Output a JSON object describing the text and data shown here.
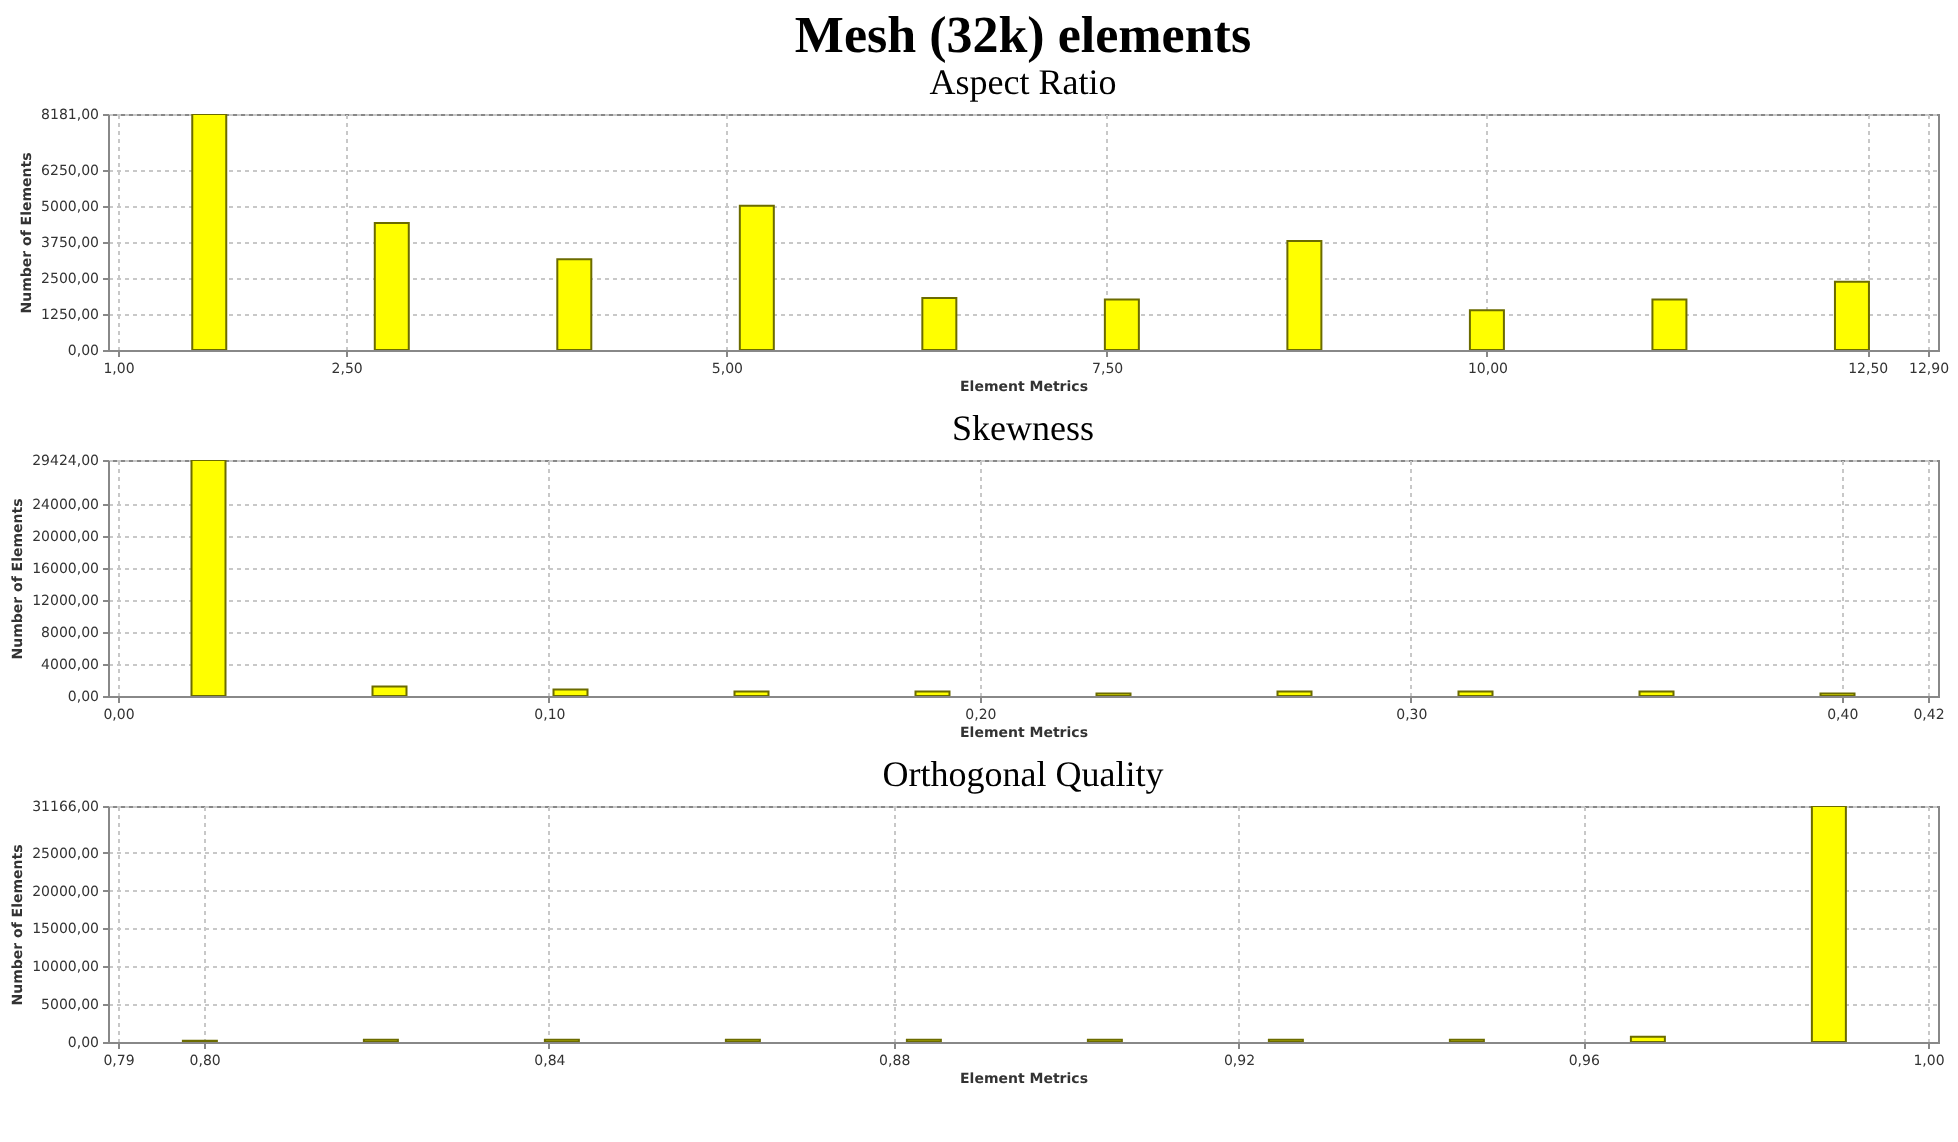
{
  "chart_data": [
    {
      "type": "bar",
      "title": "Mesh (32k) elements",
      "subtitle": "Aspect Ratio",
      "xlabel": "Element Metrics",
      "ylabel": "Number of Elements",
      "color": "#ffff00",
      "grid": true,
      "x": [
        1.6,
        2.8,
        4.0,
        5.2,
        6.4,
        7.6,
        8.8,
        10.0,
        11.2,
        12.4
      ],
      "values": [
        8181,
        4400,
        3150,
        5000,
        1800,
        1750,
        3780,
        1380,
        1750,
        2370
      ],
      "xlim": [
        1.0,
        12.9
      ],
      "xticks": [
        {
          "value": 1.0,
          "label": "1,00"
        },
        {
          "value": 2.5,
          "label": "2,50"
        },
        {
          "value": 5.0,
          "label": "5,00"
        },
        {
          "value": 7.5,
          "label": "7,50"
        },
        {
          "value": 10.0,
          "label": "10,00"
        },
        {
          "value": 12.5,
          "label": "12,50"
        },
        {
          "value": 12.9,
          "label": "12,90"
        }
      ],
      "ylim": [
        0,
        8181
      ],
      "yticks": [
        {
          "value": 0,
          "label": "0,00"
        },
        {
          "value": 1250,
          "label": "1250,00"
        },
        {
          "value": 2500,
          "label": "2500,00"
        },
        {
          "value": 3750,
          "label": "3750,00"
        },
        {
          "value": 5000,
          "label": "5000,00"
        },
        {
          "value": 6250,
          "label": "6250,00"
        },
        {
          "value": 8181,
          "label": "8181,00"
        }
      ]
    },
    {
      "type": "bar",
      "title": "Skewness",
      "xlabel": "Element Metrics",
      "ylabel": "Number of Elements",
      "color": "#ffff00",
      "grid": true,
      "x": [
        0.021,
        0.063,
        0.105,
        0.147,
        0.189,
        0.231,
        0.273,
        0.315,
        0.357,
        0.399
      ],
      "values": [
        29424,
        1200,
        800,
        550,
        550,
        300,
        550,
        550,
        550,
        300
      ],
      "xlim": [
        0,
        0.42
      ],
      "xticks": [
        {
          "value": 0,
          "label": "0,00"
        },
        {
          "value": 0.1,
          "label": "0,10"
        },
        {
          "value": 0.2,
          "label": "0,20"
        },
        {
          "value": 0.3,
          "label": "0,30"
        },
        {
          "value": 0.4,
          "label": "0,40"
        },
        {
          "value": 0.42,
          "label": "0,42"
        }
      ],
      "ylim": [
        0,
        29424
      ],
      "yticks": [
        {
          "value": 0,
          "label": "0,00"
        },
        {
          "value": 4000,
          "label": "4000,00"
        },
        {
          "value": 8000,
          "label": "8000,00"
        },
        {
          "value": 12000,
          "label": "12000,00"
        },
        {
          "value": 16000,
          "label": "16000,00"
        },
        {
          "value": 20000,
          "label": "20000,00"
        },
        {
          "value": 24000,
          "label": "24000,00"
        },
        {
          "value": 29424,
          "label": "29424,00"
        }
      ]
    },
    {
      "type": "bar",
      "title": "Orthogonal  Quality",
      "xlabel": "Element Metrics",
      "ylabel": "Number of Elements",
      "color": "#ffff00",
      "grid": true,
      "x": [
        0.7995,
        0.8205,
        0.8415,
        0.8625,
        0.8835,
        0.9045,
        0.9255,
        0.9465,
        0.9675,
        0.9885
      ],
      "values": [
        150,
        300,
        300,
        300,
        300,
        300,
        300,
        300,
        700,
        31166
      ],
      "xlim": [
        0.79,
        1.0
      ],
      "xticks": [
        {
          "value": 0.79,
          "label": "0,79"
        },
        {
          "value": 0.8,
          "label": "0,80"
        },
        {
          "value": 0.84,
          "label": "0,84"
        },
        {
          "value": 0.88,
          "label": "0,88"
        },
        {
          "value": 0.92,
          "label": "0,92"
        },
        {
          "value": 0.96,
          "label": "0,96"
        },
        {
          "value": 1.0,
          "label": "1,00"
        }
      ],
      "ylim": [
        0,
        31166
      ],
      "yticks": [
        {
          "value": 0,
          "label": "0,00"
        },
        {
          "value": 5000,
          "label": "5000,00"
        },
        {
          "value": 10000,
          "label": "10000,00"
        },
        {
          "value": 15000,
          "label": "15000,00"
        },
        {
          "value": 20000,
          "label": "20000,00"
        },
        {
          "value": 25000,
          "label": "25000,00"
        },
        {
          "value": 31166,
          "label": "31166,00"
        }
      ]
    }
  ]
}
